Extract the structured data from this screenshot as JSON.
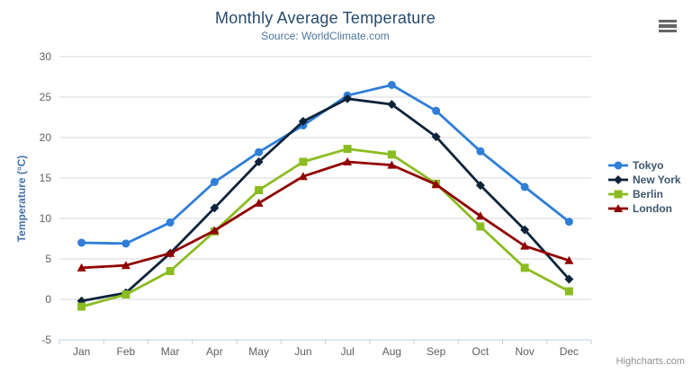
{
  "header": {
    "title": "Monthly Average Temperature",
    "subtitle": "Source: WorldClimate.com"
  },
  "credits_label": "Highcharts.com",
  "menu_icon": "hamburger-export-menu",
  "colors": {
    "title_text": "#274b6d",
    "subtitle_text": "#4d759e",
    "yaxis_title_text": "#4572a7",
    "axis_label_text": "#606060",
    "gridline": "#d8d8d8",
    "axis_line": "#c0d0e0",
    "legend_text": "#3e576f",
    "credits_text": "#909090"
  },
  "chart_data": {
    "type": "line",
    "title": "Monthly Average Temperature",
    "subtitle": "Source: WorldClimate.com",
    "xlabel": "",
    "ylabel": "Temperature (°C)",
    "ylim": [
      -5,
      30
    ],
    "ytick_interval": 5,
    "yticks": [
      -5,
      0,
      5,
      10,
      15,
      20,
      25,
      30
    ],
    "grid": true,
    "legend_position": "right",
    "categories": [
      "Jan",
      "Feb",
      "Mar",
      "Apr",
      "May",
      "Jun",
      "Jul",
      "Aug",
      "Sep",
      "Oct",
      "Nov",
      "Dec"
    ],
    "series": [
      {
        "name": "Tokyo",
        "color": "#2f7ed8",
        "marker": "circle",
        "values": [
          7.0,
          6.9,
          9.5,
          14.5,
          18.2,
          21.5,
          25.2,
          26.5,
          23.3,
          18.3,
          13.9,
          9.6
        ]
      },
      {
        "name": "New York",
        "color": "#0d233a",
        "marker": "diamond",
        "values": [
          -0.2,
          0.8,
          5.7,
          11.3,
          17.0,
          22.0,
          24.8,
          24.1,
          20.1,
          14.1,
          8.6,
          2.5
        ]
      },
      {
        "name": "Berlin",
        "color": "#8bbc21",
        "marker": "square",
        "values": [
          -0.9,
          0.6,
          3.5,
          8.4,
          13.5,
          17.0,
          18.6,
          17.9,
          14.3,
          9.0,
          3.9,
          1.0
        ]
      },
      {
        "name": "London",
        "color": "#910000",
        "marker": "triangle",
        "values": [
          3.9,
          4.2,
          5.7,
          8.5,
          11.9,
          15.2,
          17.0,
          16.6,
          14.2,
          10.3,
          6.6,
          4.8
        ]
      }
    ]
  }
}
